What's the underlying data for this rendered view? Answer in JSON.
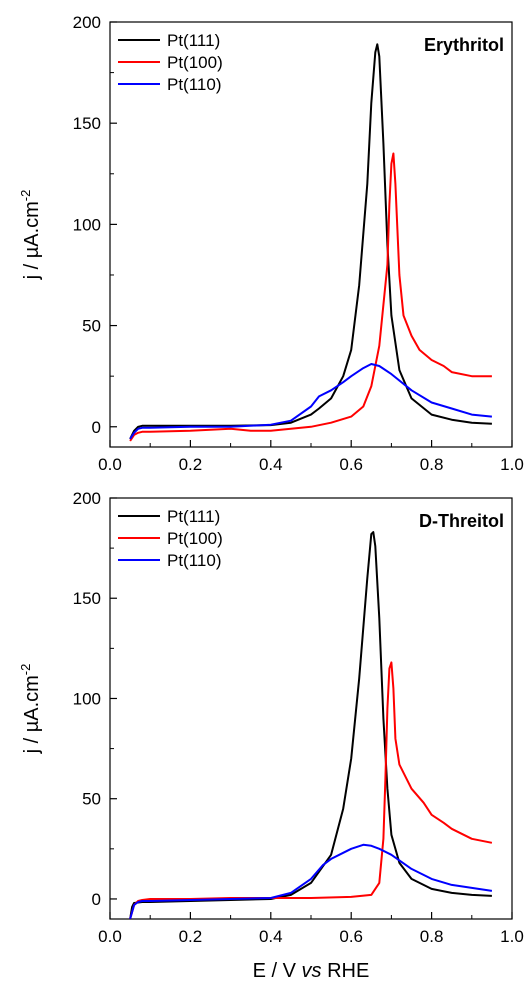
{
  "chart_data": [
    {
      "type": "line",
      "title": "Erythritol",
      "xlabel": "",
      "ylabel": "j / µA.cm",
      "ylabel_sup": "-2",
      "xlim": [
        0.0,
        1.0
      ],
      "ylim": [
        -10,
        200
      ],
      "xticks": [
        "0.0",
        "0.2",
        "0.4",
        "0.6",
        "0.8",
        "1.0"
      ],
      "yticks": [
        "0",
        "50",
        "100",
        "150",
        "200"
      ],
      "grid": false,
      "legend_position": "top-left",
      "series": [
        {
          "name": "Pt(111)",
          "color": "#000000",
          "points": [
            [
              0.05,
              -6
            ],
            [
              0.06,
              -2
            ],
            [
              0.07,
              0
            ],
            [
              0.08,
              0.5
            ],
            [
              0.1,
              0.5
            ],
            [
              0.2,
              0.5
            ],
            [
              0.3,
              0.5
            ],
            [
              0.4,
              0.8
            ],
            [
              0.45,
              2
            ],
            [
              0.5,
              6
            ],
            [
              0.52,
              9
            ],
            [
              0.55,
              14
            ],
            [
              0.58,
              25
            ],
            [
              0.6,
              38
            ],
            [
              0.62,
              70
            ],
            [
              0.64,
              120
            ],
            [
              0.65,
              160
            ],
            [
              0.66,
              185
            ],
            [
              0.665,
              189
            ],
            [
              0.67,
              183
            ],
            [
              0.68,
              140
            ],
            [
              0.69,
              90
            ],
            [
              0.7,
              55
            ],
            [
              0.72,
              28
            ],
            [
              0.75,
              14
            ],
            [
              0.8,
              6
            ],
            [
              0.85,
              3.5
            ],
            [
              0.9,
              2
            ],
            [
              0.95,
              1.5
            ]
          ]
        },
        {
          "name": "Pt(100)",
          "color": "#ff0000",
          "points": [
            [
              0.05,
              -7
            ],
            [
              0.06,
              -4
            ],
            [
              0.07,
              -3
            ],
            [
              0.08,
              -2.5
            ],
            [
              0.1,
              -2.5
            ],
            [
              0.2,
              -2
            ],
            [
              0.3,
              -1
            ],
            [
              0.35,
              -2
            ],
            [
              0.4,
              -2
            ],
            [
              0.45,
              -1
            ],
            [
              0.5,
              0
            ],
            [
              0.55,
              2
            ],
            [
              0.6,
              5
            ],
            [
              0.63,
              10
            ],
            [
              0.65,
              20
            ],
            [
              0.67,
              40
            ],
            [
              0.69,
              80
            ],
            [
              0.695,
              110
            ],
            [
              0.7,
              130
            ],
            [
              0.705,
              135
            ],
            [
              0.71,
              120
            ],
            [
              0.72,
              75
            ],
            [
              0.73,
              55
            ],
            [
              0.75,
              45
            ],
            [
              0.77,
              38
            ],
            [
              0.8,
              33
            ],
            [
              0.83,
              30
            ],
            [
              0.85,
              27
            ],
            [
              0.9,
              25
            ],
            [
              0.95,
              25
            ]
          ]
        },
        {
          "name": "Pt(110)",
          "color": "#0000ff",
          "points": [
            [
              0.05,
              -6
            ],
            [
              0.06,
              -3
            ],
            [
              0.07,
              -1
            ],
            [
              0.08,
              -0.5
            ],
            [
              0.1,
              -0.5
            ],
            [
              0.2,
              0
            ],
            [
              0.3,
              0
            ],
            [
              0.4,
              1
            ],
            [
              0.45,
              3
            ],
            [
              0.5,
              10
            ],
            [
              0.52,
              15
            ],
            [
              0.55,
              18
            ],
            [
              0.58,
              22
            ],
            [
              0.6,
              25
            ],
            [
              0.63,
              29
            ],
            [
              0.65,
              31
            ],
            [
              0.67,
              30
            ],
            [
              0.7,
              26
            ],
            [
              0.75,
              18
            ],
            [
              0.8,
              12
            ],
            [
              0.85,
              9
            ],
            [
              0.9,
              6
            ],
            [
              0.95,
              5
            ]
          ]
        }
      ]
    },
    {
      "type": "line",
      "title": "D-Threitol",
      "xlabel": "E / V",
      "xlabel_italic": "vs",
      "xlabel_end": "RHE",
      "ylabel": "j / µA.cm",
      "ylabel_sup": "-2",
      "xlim": [
        0.0,
        1.0
      ],
      "ylim": [
        -10,
        200
      ],
      "xticks": [
        "0.0",
        "0.2",
        "0.4",
        "0.6",
        "0.8",
        "1.0"
      ],
      "yticks": [
        "0",
        "50",
        "100",
        "150",
        "200"
      ],
      "grid": false,
      "legend_position": "top-left",
      "series": [
        {
          "name": "Pt(111)",
          "color": "#000000",
          "points": [
            [
              0.05,
              -10
            ],
            [
              0.055,
              -4
            ],
            [
              0.06,
              -2
            ],
            [
              0.08,
              -1.5
            ],
            [
              0.1,
              -1.5
            ],
            [
              0.2,
              -1
            ],
            [
              0.3,
              -0.5
            ],
            [
              0.4,
              0
            ],
            [
              0.45,
              2
            ],
            [
              0.5,
              8
            ],
            [
              0.55,
              22
            ],
            [
              0.58,
              45
            ],
            [
              0.6,
              70
            ],
            [
              0.62,
              110
            ],
            [
              0.64,
              160
            ],
            [
              0.65,
              182
            ],
            [
              0.655,
              183
            ],
            [
              0.66,
              176
            ],
            [
              0.67,
              140
            ],
            [
              0.68,
              90
            ],
            [
              0.69,
              55
            ],
            [
              0.7,
              32
            ],
            [
              0.72,
              18
            ],
            [
              0.75,
              10
            ],
            [
              0.8,
              5
            ],
            [
              0.85,
              3
            ],
            [
              0.9,
              2
            ],
            [
              0.95,
              1.5
            ]
          ]
        },
        {
          "name": "Pt(100)",
          "color": "#ff0000",
          "points": [
            [
              0.05,
              -10
            ],
            [
              0.06,
              -3
            ],
            [
              0.07,
              -1
            ],
            [
              0.08,
              -0.5
            ],
            [
              0.1,
              0
            ],
            [
              0.2,
              0
            ],
            [
              0.3,
              0.5
            ],
            [
              0.4,
              0.5
            ],
            [
              0.5,
              0.5
            ],
            [
              0.6,
              1
            ],
            [
              0.65,
              2
            ],
            [
              0.67,
              8
            ],
            [
              0.68,
              30
            ],
            [
              0.685,
              60
            ],
            [
              0.69,
              95
            ],
            [
              0.695,
              115
            ],
            [
              0.7,
              118
            ],
            [
              0.705,
              105
            ],
            [
              0.71,
              80
            ],
            [
              0.72,
              67
            ],
            [
              0.75,
              55
            ],
            [
              0.78,
              48
            ],
            [
              0.8,
              42
            ],
            [
              0.83,
              38
            ],
            [
              0.85,
              35
            ],
            [
              0.9,
              30
            ],
            [
              0.95,
              28
            ]
          ]
        },
        {
          "name": "Pt(110)",
          "color": "#0000ff",
          "points": [
            [
              0.05,
              -10
            ],
            [
              0.06,
              -3
            ],
            [
              0.07,
              -1.5
            ],
            [
              0.08,
              -1
            ],
            [
              0.1,
              -1
            ],
            [
              0.2,
              -0.5
            ],
            [
              0.3,
              0
            ],
            [
              0.4,
              0.5
            ],
            [
              0.45,
              3
            ],
            [
              0.5,
              10
            ],
            [
              0.53,
              17
            ],
            [
              0.55,
              20
            ],
            [
              0.58,
              23
            ],
            [
              0.6,
              25
            ],
            [
              0.63,
              27
            ],
            [
              0.65,
              26.5
            ],
            [
              0.67,
              25
            ],
            [
              0.7,
              22
            ],
            [
              0.75,
              15
            ],
            [
              0.8,
              10
            ],
            [
              0.85,
              7
            ],
            [
              0.9,
              5.5
            ],
            [
              0.95,
              4
            ]
          ]
        }
      ]
    }
  ]
}
